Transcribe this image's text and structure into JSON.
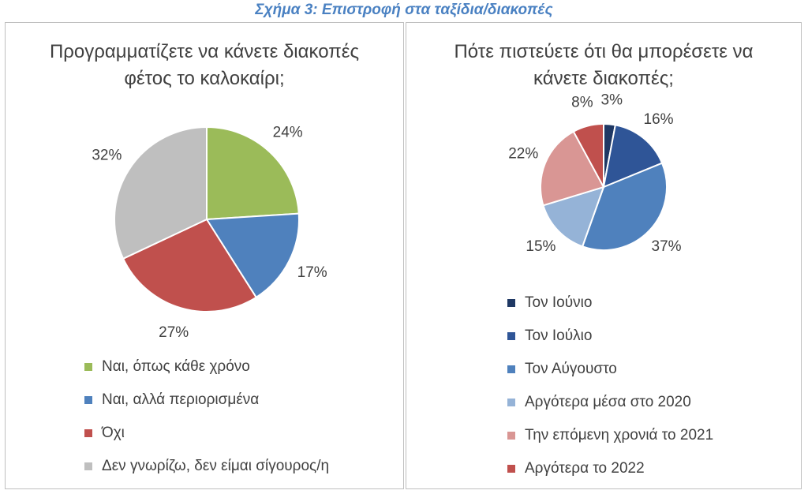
{
  "figure_title": "Σχήμα 3: Επιστροφή στα ταξίδια/διακοπές",
  "chart_data": [
    {
      "type": "pie",
      "title_lines": [
        "Προγραμματίζετε να κάνετε διακοπές",
        "φέτος το καλοκαίρι;"
      ],
      "slices": [
        {
          "label": "Ναι, όπως κάθε χρόνο",
          "value": 24,
          "display": "24%",
          "color": "#9bbb59"
        },
        {
          "label": "Ναι, αλλά περιορισμένα",
          "value": 17,
          "display": "17%",
          "color": "#4f81bd"
        },
        {
          "label": "Όχι",
          "value": 27,
          "display": "27%",
          "color": "#c0504d"
        },
        {
          "label": "Δεν γνωρίζω, δεν είμαι σίγουρος/η",
          "value": 32,
          "display": "32%",
          "color": "#bfbfbf"
        }
      ],
      "legend_position": "bottom"
    },
    {
      "type": "pie",
      "title_lines": [
        "Πότε πιστεύετε ότι θα μπορέσετε να",
        "κάνετε διακοπές;"
      ],
      "slices": [
        {
          "label": "Τον Ιούνιο",
          "value": 3,
          "display": "3%",
          "color": "#1f3864"
        },
        {
          "label": "Τον Ιούλιο",
          "value": 16,
          "display": "16%",
          "color": "#2f5597"
        },
        {
          "label": "Τον Αύγουστο",
          "value": 37,
          "display": "37%",
          "color": "#4f81bd"
        },
        {
          "label": "Αργότερα μέσα στο 2020",
          "value": 15,
          "display": "15%",
          "color": "#95b3d7"
        },
        {
          "label": "Την επόμενη χρονιά το 2021",
          "value": 22,
          "display": "22%",
          "color": "#d99694"
        },
        {
          "label": "Αργότερα το 2022",
          "value": 8,
          "display": "8%",
          "color": "#c0504d"
        }
      ],
      "legend_position": "bottom"
    }
  ]
}
